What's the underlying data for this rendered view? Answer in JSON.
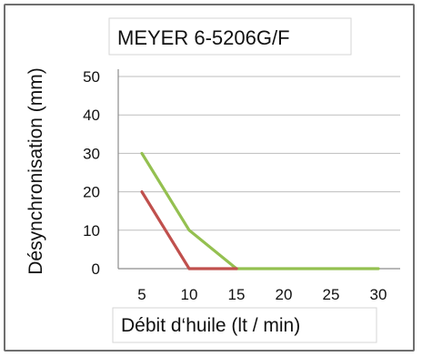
{
  "chart_data": {
    "type": "line",
    "title": "MEYER 6-5206G/F",
    "xlabel": "Débit d‘huile  (lt / min)",
    "ylabel": "Désynchronisation (mm)",
    "x": [
      5,
      10,
      15,
      20,
      25,
      30
    ],
    "x_ticks": [
      "5",
      "10",
      "15",
      "20",
      "25",
      "30"
    ],
    "y_ticks": [
      "0",
      "10",
      "20",
      "30",
      "40",
      "50"
    ],
    "ylim": [
      0,
      50
    ],
    "grid": true,
    "legend": "none",
    "series": [
      {
        "color": "#94c050",
        "points": [
          [
            5,
            30
          ],
          [
            10,
            10
          ],
          [
            15,
            0
          ],
          [
            20,
            0
          ],
          [
            25,
            0
          ],
          [
            30,
            0
          ]
        ]
      },
      {
        "color": "#c0504d",
        "points": [
          [
            5,
            20
          ],
          [
            10,
            0
          ],
          [
            15,
            0
          ]
        ]
      }
    ]
  }
}
